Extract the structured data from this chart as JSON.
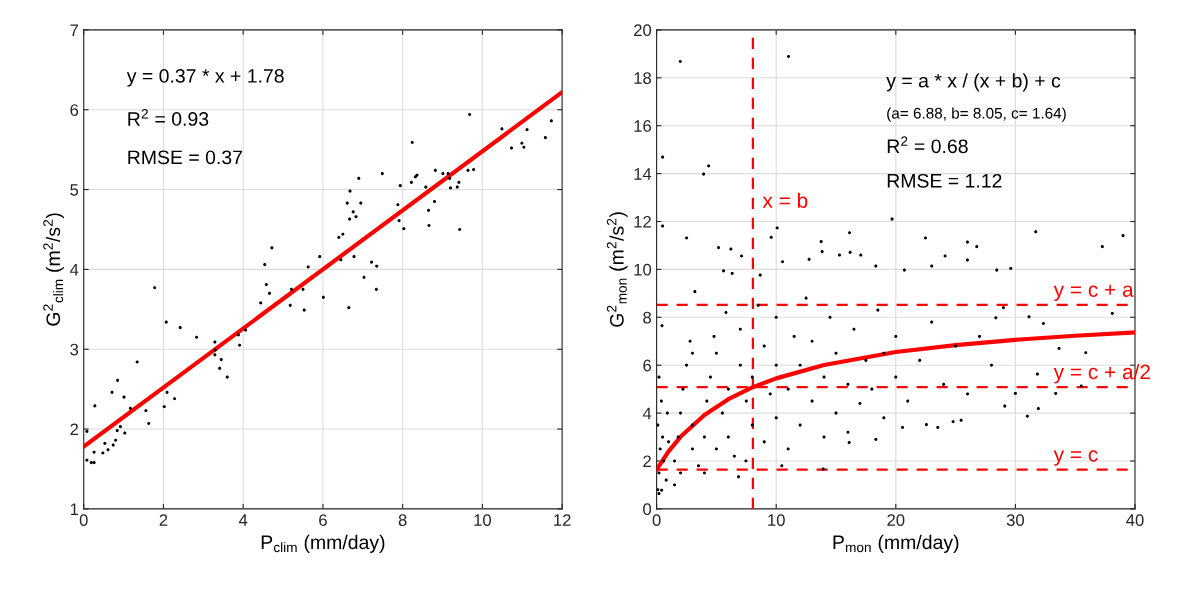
{
  "chart_data": [
    {
      "type": "scatter",
      "xlabel": "P$_{clim}$ (mm/day)",
      "ylabel": "G$^{2}$$_{clim}$ (m$^{2}$/s$^{2}$)",
      "xlim": [
        0,
        12
      ],
      "ylim": [
        1,
        7
      ],
      "xticks": [
        0,
        2,
        4,
        6,
        8,
        10,
        12
      ],
      "yticks": [
        1,
        2,
        3,
        4,
        5,
        6,
        7
      ],
      "grid": true,
      "series": [
        {
          "marker": "circle",
          "color": "#000000",
          "x": [
            0.08,
            0.08,
            0.19,
            0.26,
            0.26,
            0.28,
            0.48,
            0.53,
            0.61,
            0.74,
            0.8,
            0.84,
            0.92,
            0.71,
            0.85,
            1.03,
            1.01,
            1.17,
            1.34,
            1.56,
            1.63,
            1.78,
            2.02,
            2.07,
            2.09,
            2.28,
            2.42,
            2.83,
            3.29,
            3.29,
            3.3,
            3.45,
            3.41,
            3.6,
            3.88,
            3.91,
            4.06,
            4.44,
            4.54,
            4.58,
            4.66,
            4.72,
            5.18,
            5.21,
            5.5,
            5.53,
            5.63,
            5.92,
            6.01,
            6.4,
            6.5,
            6.45,
            6.65,
            6.61,
            6.68,
            6.67,
            6.76,
            6.83,
            6.78,
            6.9,
            6.95,
            7.03,
            7.22,
            7.35,
            7.34,
            7.49,
            7.88,
            7.94,
            7.91,
            8.03,
            8.22,
            8.24,
            8.32,
            8.36,
            8.58,
            8.65,
            8.66,
            8.8,
            8.82,
            9.01,
            9.14,
            9.18,
            9.2,
            9.37,
            9.41,
            9.43,
            9.64,
            9.68,
            9.78,
            10.49,
            10.73,
            10.99,
            11.04,
            11.12,
            11.58,
            11.73
          ],
          "values": [
            1.97,
            1.61,
            1.58,
            1.58,
            1.71,
            2.29,
            1.7,
            1.82,
            1.74,
            1.8,
            1.86,
            1.98,
            2.03,
            2.46,
            2.61,
            1.95,
            2.4,
            2.26,
            2.84,
            2.23,
            2.07,
            3.77,
            2.28,
            3.34,
            2.46,
            2.38,
            3.27,
            3.15,
            3.09,
            2.93,
            2.99,
            2.87,
            2.76,
            2.65,
            3.18,
            3.05,
            3.24,
            3.58,
            4.06,
            3.81,
            3.7,
            4.27,
            3.55,
            3.75,
            3.75,
            3.49,
            4.03,
            4.16,
            3.65,
            4.4,
            4.44,
            4.12,
            3.52,
            4.83,
            4.98,
            4.63,
            4.72,
            4.66,
            4.16,
            5.14,
            4.83,
            3.9,
            4.09,
            4.04,
            3.75,
            5.2,
            4.81,
            5.05,
            4.61,
            4.51,
            5.09,
            5.59,
            5.16,
            5.18,
            5.03,
            4.74,
            4.55,
            4.85,
            5.24,
            5.2,
            5.2,
            5.14,
            5.02,
            5.03,
            5.09,
            4.5,
            5.24,
            5.94,
            5.25,
            5.76,
            5.52,
            5.58,
            5.53,
            5.75,
            5.65,
            5.86
          ]
        },
        {
          "type": "line",
          "color": "#ff0000",
          "x": [
            0,
            12
          ],
          "values": [
            1.78,
            6.22
          ]
        }
      ],
      "annotations": [
        "y = 0.37 * x + 1.78",
        "R$^{2}$ = 0.93",
        "RMSE = 0.37"
      ]
    },
    {
      "type": "scatter",
      "xlabel": "P$_{mon}$ (mm/day)",
      "ylabel": "G$^{2}$$_{mon}$ (m$^{2}$/s$^{2}$)",
      "xlim": [
        0,
        40
      ],
      "ylim": [
        0,
        20
      ],
      "xticks": [
        0,
        10,
        20,
        30,
        40
      ],
      "yticks": [
        0,
        2,
        4,
        6,
        8,
        10,
        12,
        14,
        16,
        18,
        20
      ],
      "grid": true,
      "series": [
        {
          "marker": "circle",
          "color": "#000000",
          "x": [
            1.98,
            11.03,
            0.5,
            4.35,
            3.93,
            0.5,
            2.51,
            10.08,
            9.58,
            16.13,
            19.69,
            22.48,
            31.7,
            39.0,
            37.27,
            25.99,
            26.77,
            5.18,
            6.21,
            7.1,
            13.76,
            13.84,
            12.75,
            15.29,
            17.07,
            16.18,
            24.12,
            25.99,
            23.0,
            18.33,
            5.6,
            6.32,
            8.66,
            10.53,
            28.44,
            29.61,
            20.72,
            3.2,
            0.45,
            38.1,
            32.34,
            31.14,
            28.36,
            33.65,
            35.88,
            31.84,
            33.37,
            31.92,
            31.0,
            29.11,
            35.51,
            30.0,
            25.46,
            24.79,
            23.51,
            22.56,
            20.56,
            18.33,
            16.1,
            13.93,
            10.47,
            6.85,
            7.47,
            0.42,
            0.2,
            0.1,
            0.2,
            0.3,
            0.1,
            0.4,
            0.2,
            0.5,
            0.6,
            0.8,
            0.9,
            1.0,
            1.5,
            1.5,
            1.8,
            2.0,
            2.2,
            2.5,
            2.8,
            2.0,
            3.0,
            3.0,
            3.0,
            3.5,
            4.0,
            4.0,
            4.2,
            4.5,
            4.8,
            5.0,
            5.0,
            5.5,
            5.8,
            6.0,
            6.0,
            6.5,
            7.0,
            7.0,
            7.5,
            8.0,
            8.0,
            8.5,
            9.0,
            9.0,
            9.5,
            10.0,
            10.0,
            10.0,
            11.0,
            11.0,
            11.5,
            12.0,
            12.0,
            12.5,
            13.0,
            13.0,
            14.0,
            14.0,
            14.5,
            15.0,
            15.0,
            16.0,
            16.0,
            16.5,
            17.0,
            17.5,
            18.0,
            18.5,
            19.0,
            19.0,
            20.0,
            20.0,
            21.0,
            22.0,
            23.0,
            24.0,
            25.0,
            26.0,
            27.0,
            28.0,
            29.0
          ],
          "values": [
            18.68,
            18.89,
            14.69,
            14.32,
            13.98,
            11.81,
            11.31,
            11.73,
            11.34,
            11.53,
            12.1,
            11.31,
            11.57,
            11.41,
            10.95,
            11.14,
            10.95,
            10.91,
            10.85,
            10.56,
            11.16,
            10.74,
            10.42,
            10.6,
            10.6,
            10.71,
            10.56,
            10.39,
            10.14,
            10.14,
            9.94,
            9.83,
            9.76,
            10.32,
            9.97,
            10.04,
            9.97,
            9.07,
            7.65,
            8.16,
            7.74,
            8.02,
            7.98,
            6.7,
            6.52,
            5.63,
            4.82,
            4.19,
            3.87,
            4.29,
            5.13,
            4.82,
            3.7,
            3.64,
            3.4,
            3.52,
            3.4,
            2.9,
            2.77,
            1.66,
            1.8,
            1.34,
            2.0,
            0.78,
            0.64,
            0.8,
            1.5,
            2.5,
            3.5,
            4.5,
            5.5,
            3.0,
            2.0,
            1.2,
            4.0,
            2.8,
            1.0,
            2.0,
            3.0,
            4.0,
            5.0,
            6.0,
            7.0,
            1.5,
            2.5,
            3.5,
            6.5,
            1.8,
            1.5,
            3.0,
            4.5,
            5.5,
            7.2,
            2.5,
            6.5,
            4.0,
            8.2,
            3.0,
            5.0,
            2.2,
            6.0,
            7.5,
            4.5,
            3.5,
            5.5,
            8.5,
            2.8,
            6.8,
            4.8,
            8.0,
            3.8,
            6.0,
            2.5,
            5.0,
            7.2,
            3.5,
            6.0,
            8.8,
            4.5,
            7.0,
            3.0,
            5.5,
            8.0,
            4.0,
            6.5,
            3.2,
            5.2,
            7.5,
            4.4,
            6.2,
            5.0,
            8.3,
            3.8,
            6.5,
            5.5,
            7.2,
            4.5,
            6.2,
            7.8,
            5.2,
            6.8,
            4.8,
            7.2,
            6.0,
            8.4
          ]
        },
        {
          "type": "line",
          "color": "#ff0000",
          "x": [
            0,
            1,
            2,
            4,
            6,
            8,
            10,
            14,
            20,
            25,
            30,
            35,
            40
          ],
          "values": [
            1.64,
            2.4,
            3.01,
            3.92,
            4.58,
            5.07,
            5.45,
            6.01,
            6.55,
            6.84,
            7.06,
            7.23,
            7.37
          ]
        }
      ],
      "ref_lines": [
        {
          "axis": "x",
          "value": 8.05,
          "label": "x = b",
          "color": "#ff0000",
          "line_style": "dashed"
        },
        {
          "axis": "y",
          "value": 8.52,
          "label": "y = c + a",
          "color": "#ff0000",
          "line_style": "dashed"
        },
        {
          "axis": "y",
          "value": 5.08,
          "label": "y = c + a/2",
          "color": "#ff0000",
          "line_style": "dashed"
        },
        {
          "axis": "y",
          "value": 1.64,
          "label": "y = c",
          "color": "#ff0000",
          "line_style": "dashed"
        }
      ],
      "annotations": [
        "y = a * x / (x + b) + c",
        "(a= 6.88, b= 8.05, c= 1.64)",
        "R$^{2}$ = 0.68",
        "RMSE = 1.12"
      ]
    }
  ]
}
